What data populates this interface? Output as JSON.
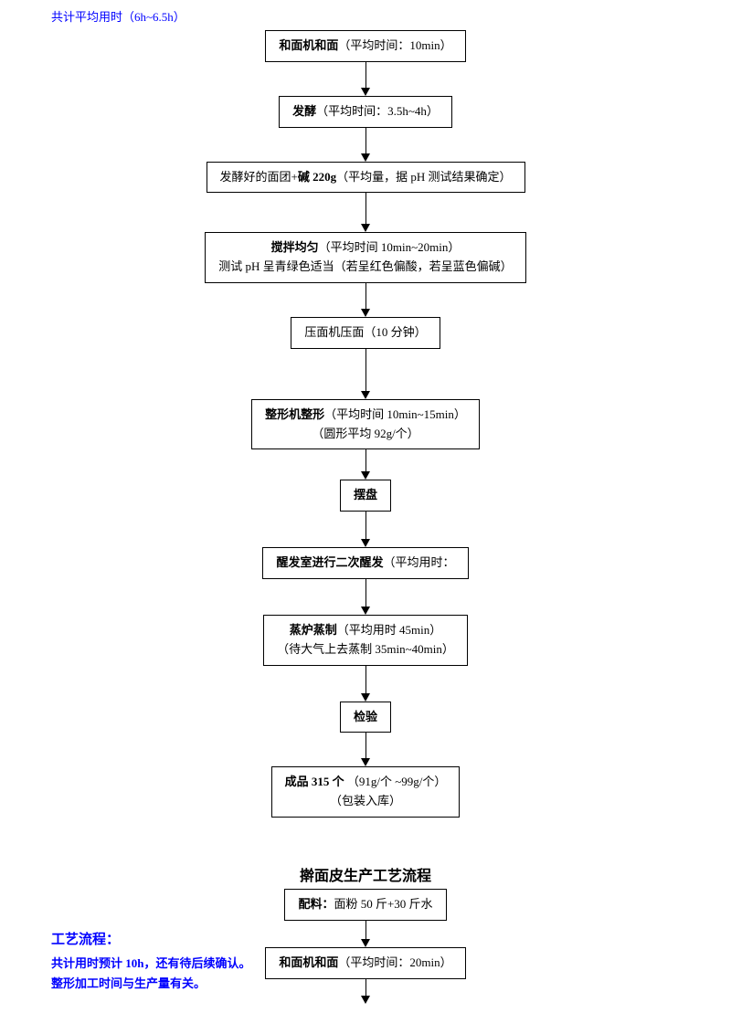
{
  "header_note": "共计平均用时（6h~6.5h）",
  "flow1": {
    "boxes": [
      {
        "lines": [
          {
            "segments": [
              {
                "t": "和面机和面",
                "b": true
              },
              {
                "t": "（平均时间：10min）",
                "b": false
              }
            ]
          }
        ],
        "arrow_h": 28
      },
      {
        "lines": [
          {
            "segments": [
              {
                "t": "发酵",
                "b": true
              },
              {
                "t": "（平均时间：3.5h~4h）",
                "b": false
              }
            ]
          }
        ],
        "arrow_h": 28
      },
      {
        "lines": [
          {
            "segments": [
              {
                "t": "发酵好的面团+",
                "b": false
              },
              {
                "t": "碱 220g",
                "b": true
              },
              {
                "t": "（平均量，据 pH 测试结果确定）",
                "b": false
              }
            ]
          }
        ],
        "arrow_h": 34
      },
      {
        "lines": [
          {
            "segments": [
              {
                "t": "搅拌均匀",
                "b": true
              },
              {
                "t": "（平均时间 10min~20min）",
                "b": false
              }
            ]
          },
          {
            "segments": [
              {
                "t": "测试 pH 呈青绿色适当（若呈红色偏酸，若呈蓝色偏碱）",
                "b": false
              }
            ]
          }
        ],
        "arrow_h": 28
      },
      {
        "lines": [
          {
            "segments": [
              {
                "t": "压面机压面（10 分钟）",
                "b": false
              }
            ]
          }
        ],
        "arrow_h": 46
      },
      {
        "lines": [
          {
            "segments": [
              {
                "t": "整形机整形",
                "b": true
              },
              {
                "t": "（平均时间 10min~15min）",
                "b": false
              }
            ]
          },
          {
            "segments": [
              {
                "t": "（圆形平均 92g/个）",
                "b": false
              }
            ]
          }
        ],
        "arrow_h": 24
      },
      {
        "lines": [
          {
            "segments": [
              {
                "t": "摆盘",
                "b": true
              }
            ]
          }
        ],
        "arrow_h": 30
      },
      {
        "lines": [
          {
            "segments": [
              {
                "t": "醒发室进行二次醒发",
                "b": true
              },
              {
                "t": "（平均用时：",
                "b": false
              }
            ]
          }
        ],
        "arrow_h": 30
      },
      {
        "lines": [
          {
            "segments": [
              {
                "t": "蒸炉蒸制",
                "b": true
              },
              {
                "t": "（平均用时 45min）",
                "b": false
              }
            ]
          },
          {
            "segments": [
              {
                "t": "（待大气上去蒸制 35min~40min）",
                "b": false
              }
            ]
          }
        ],
        "arrow_h": 30
      },
      {
        "lines": [
          {
            "segments": [
              {
                "t": "检验",
                "b": true
              }
            ]
          }
        ],
        "arrow_h": 28
      },
      {
        "lines": [
          {
            "segments": [
              {
                "t": "成品 315 个",
                "b": true
              },
              {
                "t": "  （91g/个 ~99g/个）",
                "b": false
              }
            ]
          },
          {
            "segments": [
              {
                "t": "（包装入库）",
                "b": false
              }
            ]
          }
        ],
        "arrow_h": 0
      }
    ]
  },
  "section2": {
    "title": "擀面皮生产工艺流程",
    "left_label": "工艺流程：",
    "left_note_l1": "共计用时预计 10h，还有待后续确认。",
    "left_note_l2": "整形加工时间与生产量有关。",
    "boxes": [
      {
        "lines": [
          {
            "segments": [
              {
                "t": "配料：",
                "b": true
              },
              {
                "t": "面粉 50 斤+30 斤水",
                "b": false
              }
            ]
          }
        ],
        "arrow_h": 20
      },
      {
        "lines": [
          {
            "segments": [
              {
                "t": "和面机和面",
                "b": true
              },
              {
                "t": "（平均时间：20min）",
                "b": false
              }
            ]
          }
        ],
        "arrow_h": 18
      }
    ]
  },
  "colors": {
    "blue": "#0000ff",
    "black": "#000000",
    "bg": "#ffffff"
  }
}
